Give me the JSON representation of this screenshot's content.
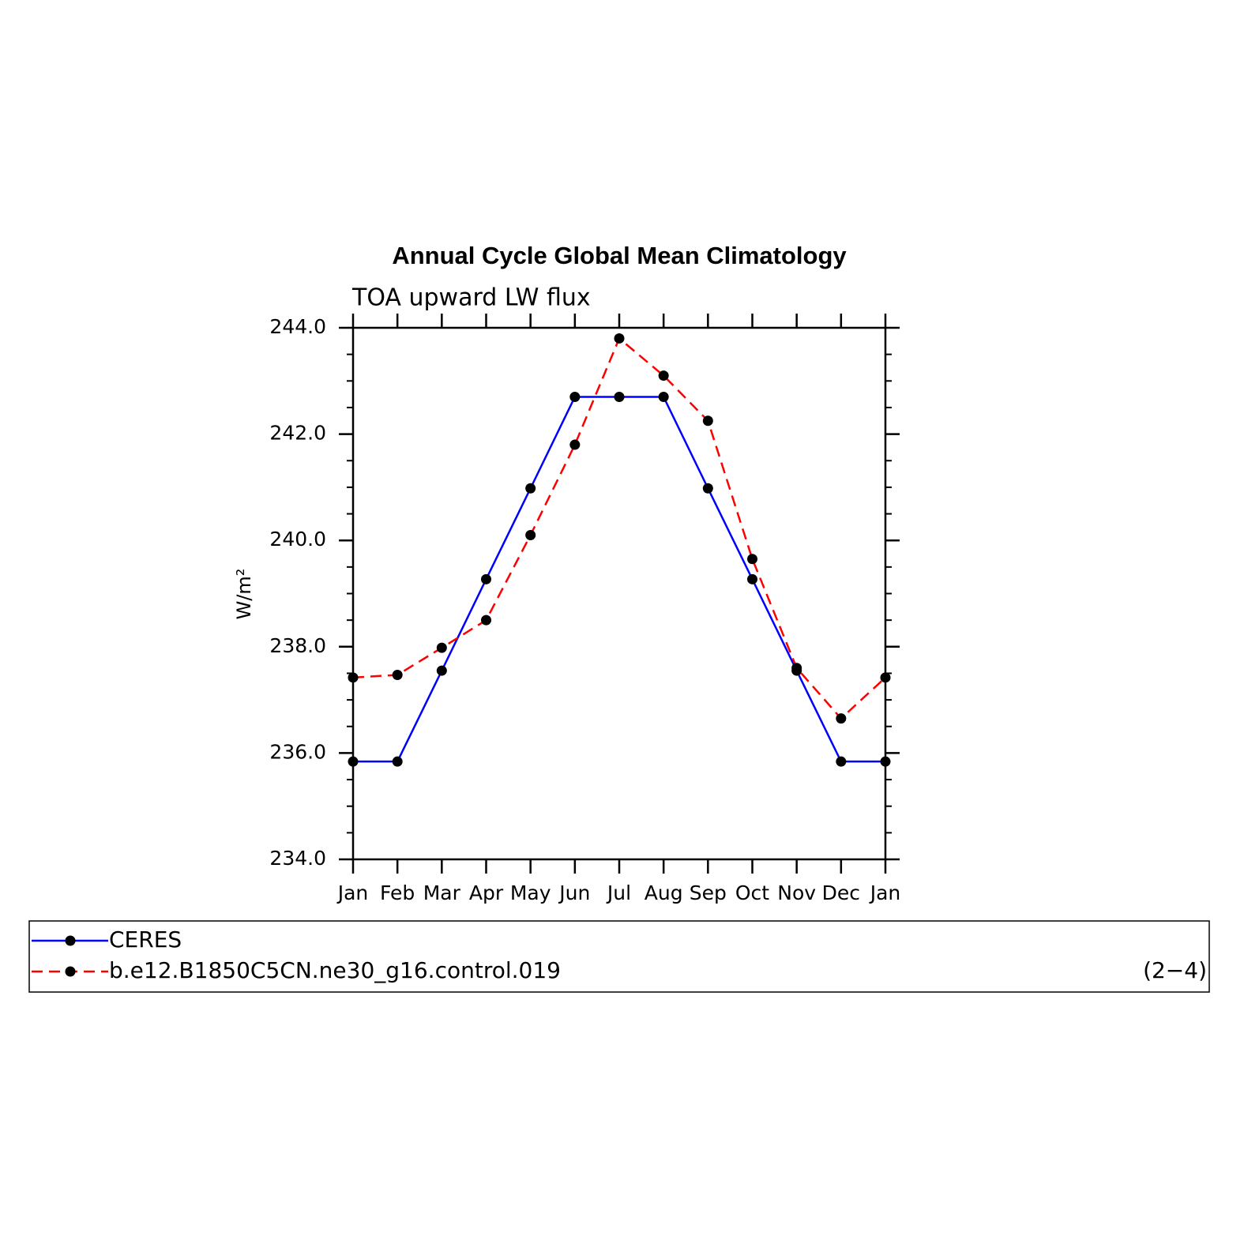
{
  "chart_data": {
    "type": "line",
    "title": "Annual Cycle Global Mean Climatology",
    "subtitle": "TOA upward LW flux",
    "y_label": "W/m²",
    "categories": [
      "Jan",
      "Feb",
      "Mar",
      "Apr",
      "May",
      "Jun",
      "Jul",
      "Aug",
      "Sep",
      "Oct",
      "Nov",
      "Dec",
      "Jan"
    ],
    "series": [
      {
        "name": "CERES",
        "color": "#0000ff",
        "line_style": "solid",
        "values": [
          235.84,
          235.84,
          237.55,
          239.27,
          240.98,
          242.7,
          242.7,
          242.7,
          240.98,
          239.27,
          237.55,
          235.84,
          235.84
        ]
      },
      {
        "name": "b.e12.B1850C5CN.ne30_g16.control.019",
        "color": "#ff0000",
        "line_style": "dashed",
        "values": [
          237.42,
          237.47,
          237.98,
          238.5,
          240.1,
          241.8,
          243.8,
          243.1,
          242.25,
          239.65,
          237.6,
          236.65,
          237.42
        ]
      }
    ],
    "ylim": [
      234,
      244
    ],
    "yticks": [
      {
        "value": 234,
        "label": "234.0"
      },
      {
        "value": 236,
        "label": "236.0"
      },
      {
        "value": 238,
        "label": "238.0"
      },
      {
        "value": 240,
        "label": "240.0"
      },
      {
        "value": 242,
        "label": "242.0"
      },
      {
        "value": 244,
        "label": "244.0"
      }
    ],
    "yminorticks": [
      234.5,
      235,
      235.5,
      236.5,
      237,
      237.5,
      238.5,
      239,
      239.5,
      240.5,
      241,
      241.5,
      242.5,
      243,
      243.5
    ],
    "annotation": "(2−4)"
  }
}
